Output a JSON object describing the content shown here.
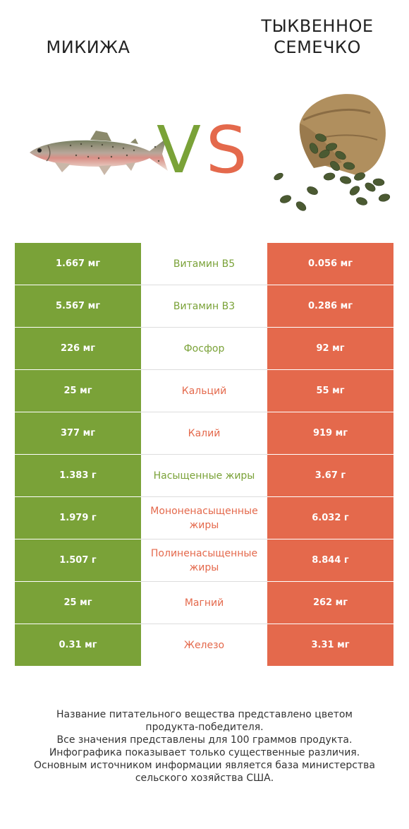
{
  "header": {
    "left_title": "МИКИЖА",
    "right_title_line1": "ТЫКВЕННОЕ",
    "right_title_line2": "СЕМЕЧКО",
    "vs_v": "V",
    "vs_s": "S"
  },
  "colors": {
    "green": "#7aa238",
    "orange": "#e4694c"
  },
  "rows": [
    {
      "left": "1.667 мг",
      "nutrient": "Витамин B5",
      "right": "0.056 мг",
      "winner": "left"
    },
    {
      "left": "5.567 мг",
      "nutrient": "Витамин B3",
      "right": "0.286 мг",
      "winner": "left"
    },
    {
      "left": "226 мг",
      "nutrient": "Фосфор",
      "right": "92 мг",
      "winner": "left"
    },
    {
      "left": "25 мг",
      "nutrient": "Кальций",
      "right": "55 мг",
      "winner": "right"
    },
    {
      "left": "377 мг",
      "nutrient": "Калий",
      "right": "919 мг",
      "winner": "right"
    },
    {
      "left": "1.383 г",
      "nutrient": "Насыщенные жиры",
      "right": "3.67 г",
      "winner": "left"
    },
    {
      "left": "1.979 г",
      "nutrient": "Мононенасыщенные жиры",
      "right": "6.032 г",
      "winner": "right"
    },
    {
      "left": "1.507 г",
      "nutrient": "Полиненасыщенные жиры",
      "right": "8.844 г",
      "winner": "right"
    },
    {
      "left": "25 мг",
      "nutrient": "Магний",
      "right": "262 мг",
      "winner": "right"
    },
    {
      "left": "0.31 мг",
      "nutrient": "Железо",
      "right": "3.31 мг",
      "winner": "right"
    }
  ],
  "footnote": [
    "Название питательного вещества представлено цветом",
    "продукта-победителя.",
    "Все значения представлены для 100 граммов продукта.",
    "Инфографика показывает только существенные различия.",
    "Основным источником информации является база министерства",
    "сельского хозяйства США."
  ],
  "icons": {
    "fish": "trout-image",
    "seeds": "pumpkin-seeds-sack-image"
  }
}
